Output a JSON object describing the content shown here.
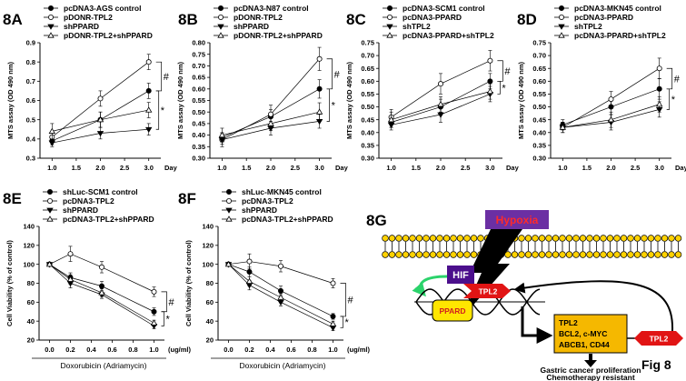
{
  "figure_label": "Fig 8",
  "chart_data": [
    {
      "panel": "8A",
      "type": "line",
      "x": [
        1.0,
        2.0,
        3.0
      ],
      "xticks": [
        "1.0",
        "1.5",
        "2.0",
        "2.5",
        "3.0"
      ],
      "xtick_values": [
        1.0,
        1.5,
        2.0,
        2.5,
        3.0
      ],
      "xlim": [
        0.75,
        3.25
      ],
      "xunit": "Day",
      "ylabel": "MTS assay (OD 490 nm)",
      "ylim": [
        0.3,
        0.9
      ],
      "yticks": [
        "0.3",
        "0.4",
        "0.5",
        "0.6",
        "0.7",
        "0.8",
        "0.9"
      ],
      "ytick_values": [
        0.3,
        0.4,
        0.5,
        0.6,
        0.7,
        0.8,
        0.9
      ],
      "series": [
        {
          "name": "pcDNA3-AGS control",
          "marker": "filled-circle",
          "values": [
            0.39,
            0.5,
            0.65
          ],
          "err": [
            0.02,
            0.04,
            0.04
          ]
        },
        {
          "name": "pDONR-TPL2",
          "marker": "open-circle",
          "values": [
            0.41,
            0.61,
            0.8
          ],
          "err": [
            0.03,
            0.04,
            0.04
          ]
        },
        {
          "name": "shPPARD",
          "marker": "filled-triangle",
          "values": [
            0.38,
            0.43,
            0.45
          ],
          "err": [
            0.02,
            0.03,
            0.03
          ]
        },
        {
          "name": "pDONR-TPL2+shPPARD",
          "marker": "open-triangle",
          "values": [
            0.44,
            0.5,
            0.55
          ],
          "err": [
            0.04,
            0.04,
            0.04
          ]
        }
      ],
      "annotations": [
        "#",
        "*"
      ]
    },
    {
      "panel": "8B",
      "type": "line",
      "x": [
        1.0,
        2.0,
        3.0
      ],
      "xticks": [
        "1.0",
        "1.5",
        "2.0",
        "2.5",
        "3.0"
      ],
      "xtick_values": [
        1.0,
        1.5,
        2.0,
        2.5,
        3.0
      ],
      "xlim": [
        0.75,
        3.25
      ],
      "xunit": "Day",
      "ylabel": "MTS assay (OD 490 nm)",
      "ylim": [
        0.3,
        0.8
      ],
      "yticks": [
        "0.30",
        "0.35",
        "0.40",
        "0.45",
        "0.50",
        "0.55",
        "0.60",
        "0.65",
        "0.70",
        "0.75",
        "0.80"
      ],
      "ytick_values": [
        0.3,
        0.35,
        0.4,
        0.45,
        0.5,
        0.55,
        0.6,
        0.65,
        0.7,
        0.75,
        0.8
      ],
      "series": [
        {
          "name": "pcDNA3-N87 control",
          "marker": "filled-circle",
          "values": [
            0.39,
            0.48,
            0.6
          ],
          "err": [
            0.02,
            0.03,
            0.04
          ]
        },
        {
          "name": "pDONR-TPL2",
          "marker": "open-circle",
          "values": [
            0.38,
            0.49,
            0.73
          ],
          "err": [
            0.03,
            0.04,
            0.05
          ]
        },
        {
          "name": "shPPARD",
          "marker": "filled-triangle",
          "values": [
            0.38,
            0.43,
            0.46
          ],
          "err": [
            0.02,
            0.03,
            0.03
          ]
        },
        {
          "name": "pDONR-TPL2+shPPARD",
          "marker": "open-triangle",
          "values": [
            0.4,
            0.45,
            0.5
          ],
          "err": [
            0.03,
            0.03,
            0.04
          ]
        }
      ],
      "annotations": [
        "#",
        "*"
      ]
    },
    {
      "panel": "8C",
      "type": "line",
      "x": [
        1.0,
        2.0,
        3.0
      ],
      "xticks": [
        "1.0",
        "1.5",
        "2.0",
        "2.5",
        "3.0"
      ],
      "xtick_values": [
        1.0,
        1.5,
        2.0,
        2.5,
        3.0
      ],
      "xlim": [
        0.75,
        3.25
      ],
      "xunit": "Day",
      "ylabel": "MTS assay (OD 490 nm)",
      "ylim": [
        0.3,
        0.75
      ],
      "yticks": [
        "0.30",
        "0.35",
        "0.40",
        "0.45",
        "0.50",
        "0.55",
        "0.60",
        "0.65",
        "0.70",
        "0.75"
      ],
      "ytick_values": [
        0.3,
        0.35,
        0.4,
        0.45,
        0.5,
        0.55,
        0.6,
        0.65,
        0.7,
        0.75
      ],
      "series": [
        {
          "name": "pcDNA3-SCM1 control",
          "marker": "filled-circle",
          "values": [
            0.44,
            0.5,
            0.6
          ],
          "err": [
            0.02,
            0.03,
            0.03
          ]
        },
        {
          "name": "pcDNA3-PPARD",
          "marker": "open-circle",
          "values": [
            0.46,
            0.59,
            0.68
          ],
          "err": [
            0.03,
            0.04,
            0.04
          ]
        },
        {
          "name": "shTPL2",
          "marker": "filled-triangle",
          "values": [
            0.43,
            0.47,
            0.55
          ],
          "err": [
            0.02,
            0.03,
            0.03
          ]
        },
        {
          "name": "pcDNA3-PPARD+shTPL2",
          "marker": "open-triangle",
          "values": [
            0.45,
            0.51,
            0.56
          ],
          "err": [
            0.03,
            0.03,
            0.03
          ]
        }
      ],
      "annotations": [
        "#",
        "*"
      ]
    },
    {
      "panel": "8D",
      "type": "line",
      "x": [
        1.0,
        2.0,
        3.0
      ],
      "xticks": [
        "1.0",
        "1.5",
        "2.0",
        "2.5",
        "3.0"
      ],
      "xtick_values": [
        1.0,
        1.5,
        2.0,
        2.5,
        3.0
      ],
      "xlim": [
        0.75,
        3.25
      ],
      "xunit": "Day",
      "ylabel": "MTS assay (OD 490 nm)",
      "ylim": [
        0.3,
        0.75
      ],
      "yticks": [
        "0.30",
        "0.35",
        "0.40",
        "0.45",
        "0.50",
        "0.55",
        "0.60",
        "0.65",
        "0.70",
        "0.75"
      ],
      "ytick_values": [
        0.3,
        0.35,
        0.4,
        0.45,
        0.5,
        0.55,
        0.6,
        0.65,
        0.7,
        0.75
      ],
      "series": [
        {
          "name": "pcDNA3-MKN45 control",
          "marker": "filled-circle",
          "values": [
            0.43,
            0.5,
            0.57
          ],
          "err": [
            0.02,
            0.03,
            0.04
          ]
        },
        {
          "name": "pcDNA3-PPARD",
          "marker": "open-circle",
          "values": [
            0.42,
            0.53,
            0.65
          ],
          "err": [
            0.02,
            0.03,
            0.04
          ]
        },
        {
          "name": "shTPL2",
          "marker": "filled-triangle",
          "values": [
            0.42,
            0.44,
            0.49
          ],
          "err": [
            0.02,
            0.03,
            0.03
          ]
        },
        {
          "name": "pcDNA3-PPARD+shTPL2",
          "marker": "open-triangle",
          "values": [
            0.42,
            0.45,
            0.51
          ],
          "err": [
            0.02,
            0.03,
            0.03
          ]
        }
      ],
      "annotations": [
        "#",
        "*"
      ]
    },
    {
      "panel": "8E",
      "type": "line",
      "x": [
        0.0,
        0.2,
        0.5,
        1.0
      ],
      "xticks": [
        "0.0",
        "0.2",
        "0.4",
        "0.6",
        "0.8",
        "1.0"
      ],
      "xtick_values": [
        0.0,
        0.2,
        0.4,
        0.6,
        0.8,
        1.0
      ],
      "xlim": [
        -0.1,
        1.1
      ],
      "xunit": "(ug/ml)",
      "xlabel": "Doxorubicin (Adriamycin)",
      "ylabel": "Cell Viability (% of control)",
      "ylim": [
        20,
        140
      ],
      "yticks": [
        "20",
        "40",
        "60",
        "80",
        "100",
        "120",
        "140"
      ],
      "ytick_values": [
        20,
        40,
        60,
        80,
        100,
        120,
        140
      ],
      "series": [
        {
          "name": "shLuc-SCM1 control",
          "marker": "filled-circle",
          "values": [
            100,
            86,
            77,
            50
          ],
          "err": [
            0,
            5,
            5,
            4
          ]
        },
        {
          "name": "pcDNA3-TPL2",
          "marker": "open-circle",
          "values": [
            100,
            111,
            97,
            71
          ],
          "err": [
            0,
            8,
            6,
            5
          ]
        },
        {
          "name": "shPPARD",
          "marker": "filled-triangle",
          "values": [
            100,
            80,
            68,
            35
          ],
          "err": [
            0,
            5,
            4,
            3
          ]
        },
        {
          "name": "pcDNA3-TPL2+shPPARD",
          "marker": "open-triangle",
          "values": [
            100,
            84,
            70,
            38
          ],
          "err": [
            0,
            5,
            4,
            3
          ]
        }
      ],
      "annotations": [
        "#",
        "*"
      ]
    },
    {
      "panel": "8F",
      "type": "line",
      "x": [
        0.0,
        0.2,
        0.5,
        1.0
      ],
      "xticks": [
        "0.0",
        "0.2",
        "0.4",
        "0.6",
        "0.8",
        "1.0"
      ],
      "xtick_values": [
        0.0,
        0.2,
        0.4,
        0.6,
        0.8,
        1.0
      ],
      "xlim": [
        -0.1,
        1.1
      ],
      "xunit": "(ug/ml)",
      "xlabel": "Doxorubicin (Adriamycin)",
      "ylabel": "Cell Viability (% of control)",
      "ylim": [
        20,
        140
      ],
      "yticks": [
        "20",
        "40",
        "60",
        "80",
        "100",
        "120",
        "140"
      ],
      "ytick_values": [
        20,
        40,
        60,
        80,
        100,
        120,
        140
      ],
      "series": [
        {
          "name": "shLuc-MKN45 control",
          "marker": "filled-circle",
          "values": [
            100,
            92,
            72,
            45
          ],
          "err": [
            0,
            5,
            5,
            3
          ]
        },
        {
          "name": "pcDNA3-TPL2",
          "marker": "open-circle",
          "values": [
            100,
            103,
            98,
            80
          ],
          "err": [
            0,
            8,
            6,
            5
          ]
        },
        {
          "name": "shPPARD",
          "marker": "filled-triangle",
          "values": [
            100,
            78,
            60,
            33
          ],
          "err": [
            0,
            5,
            4,
            3
          ]
        },
        {
          "name": "pcDNA3-TPL2+shPPARD",
          "marker": "open-triangle",
          "values": [
            100,
            82,
            65,
            37
          ],
          "err": [
            0,
            5,
            4,
            3
          ]
        }
      ],
      "annotations": [
        "#",
        "*"
      ]
    }
  ],
  "diagram": {
    "panel": "8G",
    "hypoxia": "Hypoxia",
    "hif": "HIF",
    "ppard": "PPARD",
    "tpl2": "TPL2",
    "targets": [
      "TPL2",
      "BCL2, c-MYC",
      "ABCB1, CD44"
    ],
    "outcome": [
      "Gastric cancer proliferation",
      "Chemotherapy resistant"
    ],
    "colors": {
      "hypoxia_fill": "#6b2fa3",
      "hypoxia_text": "#ff2a2a",
      "hif_fill": "#4b0f8c",
      "hif_text": "#ffffff",
      "ppard_fill": "#ffe600",
      "ppard_text": "#d11f1f",
      "tpl2_fill": "#e11414",
      "tpl2_text": "#ffffff",
      "target_fill": "#f5b800",
      "membrane": "#ffd200",
      "arrow_green": "#2bd36b"
    }
  }
}
